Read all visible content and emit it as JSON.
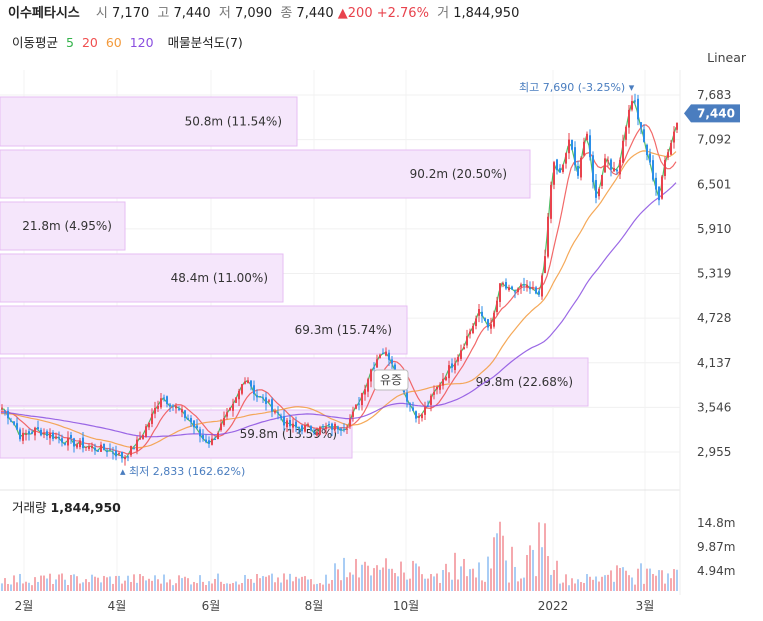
{
  "header": {
    "name": "이수페타시스",
    "open_label": "시",
    "open": "7,170",
    "high_label": "고",
    "high": "7,440",
    "low_label": "저",
    "low": "7,090",
    "close_label": "종",
    "close": "7,440",
    "change": "▲200",
    "change_pct": "+2.76%",
    "volume_label": "거",
    "volume": "1,844,950"
  },
  "ma_legend": {
    "title": "이동평균",
    "items": [
      {
        "label": "5",
        "color": "#33b24a"
      },
      {
        "label": "20",
        "color": "#f04f4f"
      },
      {
        "label": "60",
        "color": "#f39a3c"
      },
      {
        "label": "120",
        "color": "#8a4fe0"
      }
    ],
    "profile_label": "매물분석도(7)"
  },
  "scale_label": "Linear",
  "volume_panel": {
    "label": "거래량",
    "value": "1,844,950"
  },
  "colors": {
    "up": "#e8434d",
    "down": "#2b8ee8",
    "profile": "#f5e6fb",
    "profile_border": "#e6bdf3",
    "tag": "#4a7dbf"
  },
  "chart_data": {
    "type": "candlestick",
    "y_ticks": [
      "7,683",
      "7,092",
      "6,501",
      "5,910",
      "5,319",
      "4,728",
      "4,137",
      "3,546",
      "2,955"
    ],
    "ylim": [
      2700,
      7900
    ],
    "last_price": "7,440",
    "x_ticks": [
      "2월",
      "4월",
      "6월",
      "8월",
      "10월",
      "2022",
      "3월"
    ],
    "high_marker": {
      "label": "최고",
      "value": "7,690",
      "pct": "(-3.25%)"
    },
    "low_marker": {
      "label": "최저",
      "value": "2,833",
      "pct": "(162.62%)"
    },
    "event_marker": "유증",
    "volume_ticks": [
      "14.8m",
      "9.87m",
      "4.94m"
    ],
    "volume_profile": [
      {
        "label": "50.8m (11.54%)",
        "pct": 11.54
      },
      {
        "label": "90.2m (20.50%)",
        "pct": 20.5
      },
      {
        "label": "21.8m (4.95%)",
        "pct": 4.95
      },
      {
        "label": "48.4m (11.00%)",
        "pct": 11.0
      },
      {
        "label": "69.3m (15.74%)",
        "pct": 15.74
      },
      {
        "label": "99.8m (22.68%)",
        "pct": 22.68
      },
      {
        "label": "59.8m (13.59%)",
        "pct": 13.59
      }
    ],
    "price_path": [
      [
        0,
        3560
      ],
      [
        10,
        3400
      ],
      [
        20,
        3150
      ],
      [
        35,
        3250
      ],
      [
        50,
        3180
      ],
      [
        65,
        3100
      ],
      [
        80,
        3050
      ],
      [
        95,
        3000
      ],
      [
        110,
        2980
      ],
      [
        122,
        2880
      ],
      [
        135,
        3050
      ],
      [
        150,
        3400
      ],
      [
        160,
        3700
      ],
      [
        170,
        3600
      ],
      [
        180,
        3480
      ],
      [
        190,
        3350
      ],
      [
        200,
        3150
      ],
      [
        210,
        3080
      ],
      [
        220,
        3300
      ],
      [
        232,
        3550
      ],
      [
        245,
        3980
      ],
      [
        255,
        3700
      ],
      [
        265,
        3620
      ],
      [
        275,
        3500
      ],
      [
        285,
        3320
      ],
      [
        295,
        3270
      ],
      [
        305,
        3280
      ],
      [
        315,
        3260
      ],
      [
        325,
        3270
      ],
      [
        335,
        3290
      ],
      [
        345,
        3300
      ],
      [
        352,
        3450
      ],
      [
        360,
        3700
      ],
      [
        370,
        4050
      ],
      [
        380,
        4300
      ],
      [
        390,
        4200
      ],
      [
        400,
        3850
      ],
      [
        410,
        3550
      ],
      [
        418,
        3400
      ],
      [
        428,
        3600
      ],
      [
        440,
        3900
      ],
      [
        455,
        4200
      ],
      [
        465,
        4450
      ],
      [
        478,
        4800
      ],
      [
        490,
        4600
      ],
      [
        500,
        5200
      ],
      [
        510,
        5050
      ],
      [
        520,
        5150
      ],
      [
        530,
        5100
      ],
      [
        538,
        5000
      ],
      [
        545,
        5700
      ],
      [
        552,
        6800
      ],
      [
        560,
        6600
      ],
      [
        568,
        7100
      ],
      [
        576,
        6600
      ],
      [
        585,
        7200
      ],
      [
        595,
        6300
      ],
      [
        605,
        6900
      ],
      [
        615,
        6600
      ],
      [
        625,
        7300
      ],
      [
        632,
        7690
      ],
      [
        640,
        7200
      ],
      [
        650,
        6700
      ],
      [
        658,
        6300
      ],
      [
        665,
        6900
      ],
      [
        673,
        7200
      ],
      [
        678,
        7440
      ]
    ]
  }
}
